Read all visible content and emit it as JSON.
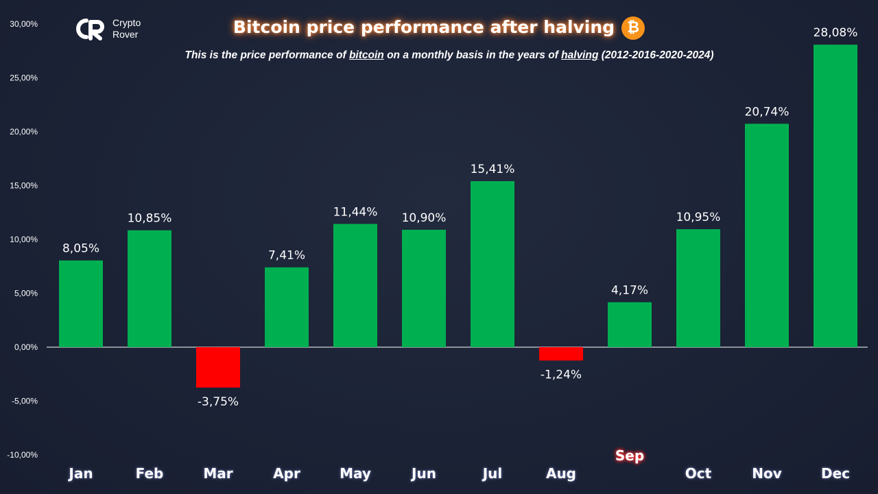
{
  "brand": {
    "line1": "Crypto",
    "line2": "Rover"
  },
  "header": {
    "title": "Bitcoin price performance after halving",
    "btc_symbol": "₿",
    "subtitle_parts": [
      {
        "text": "This is the price performance of ",
        "underline": false
      },
      {
        "text": "bitcoin",
        "underline": true
      },
      {
        "text": " on a monthly basis in the years of ",
        "underline": false
      },
      {
        "text": "halving",
        "underline": true
      },
      {
        "text": " (2012-2016-2020-2024)",
        "underline": false
      }
    ]
  },
  "colors": {
    "positive": "#00b050",
    "negative": "#ff0000",
    "axis": "#ffffff",
    "btc": "#f7931a"
  },
  "chart_data": {
    "type": "bar",
    "categories": [
      "Jan",
      "Feb",
      "Mar",
      "Apr",
      "May",
      "Jun",
      "Jul",
      "Aug",
      "Sep",
      "Oct",
      "Nov",
      "Dec"
    ],
    "values": [
      8.05,
      10.85,
      -3.75,
      7.41,
      11.44,
      10.9,
      15.41,
      -1.24,
      4.17,
      10.95,
      20.74,
      28.08
    ],
    "value_labels": [
      "8,05%",
      "10,85%",
      "-3,75%",
      "7,41%",
      "11,44%",
      "10,90%",
      "15,41%",
      "-1,24%",
      "4,17%",
      "10,95%",
      "20,74%",
      "28,08%"
    ],
    "highlighted_category": "Sep",
    "y_ticks": [
      30,
      25,
      20,
      15,
      10,
      5,
      0,
      -5,
      -10
    ],
    "y_tick_labels": [
      "30,00%",
      "25,00%",
      "20,00%",
      "15,00%",
      "10,00%",
      "5,00%",
      "0,00%",
      "-5,00%",
      "-10,00%"
    ],
    "ylim": [
      -10,
      30
    ],
    "grid": false,
    "legend": "none"
  }
}
